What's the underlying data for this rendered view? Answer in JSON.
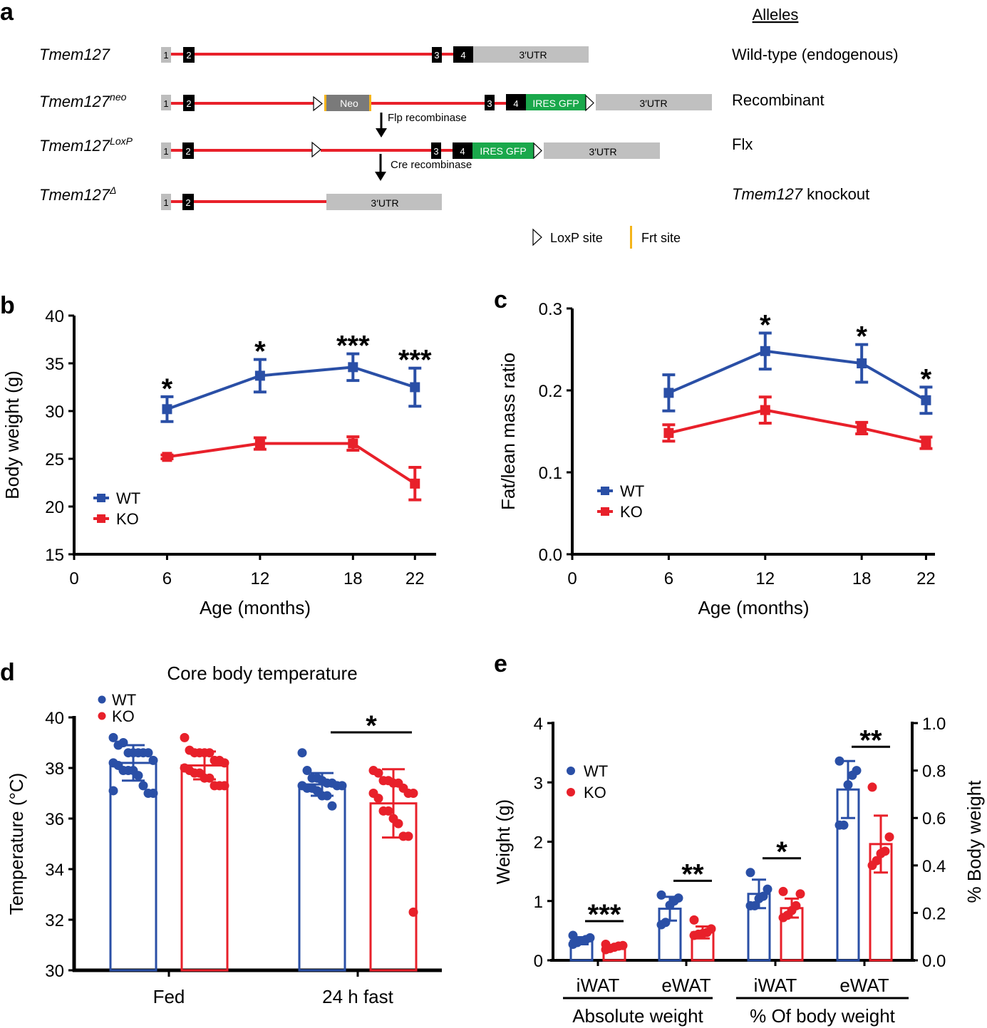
{
  "colors": {
    "wt": "#2a4fa6",
    "ko": "#e8202a",
    "intron": "#e8202a",
    "exon_dark": "#000000",
    "exon_light": "#bdbdbd",
    "utr": "#c0c0c0",
    "neo": "#7a7a7a",
    "gfp": "#1aa84b",
    "frt": "#f4b41a",
    "axis": "#000000"
  },
  "panel_a": {
    "letter": "a",
    "alleles_header": "Alleles",
    "rows": [
      {
        "gene": "Tmem127",
        "sup": "",
        "allele": "Wild-type (endogenous)"
      },
      {
        "gene": "Tmem127",
        "sup": "neo",
        "allele": "Recombinant"
      },
      {
        "gene": "Tmem127",
        "sup": "LoxP",
        "allele": "Flx"
      },
      {
        "gene": "Tmem127",
        "sup": "Δ",
        "allele_italic": "Tmem127",
        "allele": " knockout"
      }
    ],
    "exons": {
      "e1": "1",
      "e2": "2",
      "e3": "3",
      "e4": "4"
    },
    "utr_label": "3′UTR",
    "neo_label": "Neo",
    "gfp_label": "IRES GFP",
    "flp_label": "Flp recombinase",
    "cre_label": "Cre recombinase",
    "legend": {
      "loxp": "LoxP site",
      "frt": "Frt site"
    }
  },
  "chart_data": [
    {
      "id": "b",
      "type": "line",
      "letter": "b",
      "title": "",
      "xlabel": "Age (months)",
      "ylabel": "Body weight (g)",
      "xlim": [
        0,
        23
      ],
      "ylim": [
        15,
        40
      ],
      "xticks": [
        0,
        6,
        12,
        18,
        22
      ],
      "yticks": [
        15,
        20,
        25,
        30,
        35,
        40
      ],
      "grid": false,
      "legend": "left-middle",
      "series": [
        {
          "name": "WT",
          "x": [
            6,
            12,
            18,
            22
          ],
          "y": [
            30.2,
            33.7,
            34.6,
            32.5
          ],
          "err": [
            1.3,
            1.7,
            1.4,
            2.0
          ]
        },
        {
          "name": "KO",
          "x": [
            6,
            12,
            18,
            22
          ],
          "y": [
            25.2,
            26.6,
            26.6,
            22.4
          ],
          "err": [
            0.2,
            0.6,
            0.7,
            1.7
          ]
        }
      ],
      "annotations": [
        {
          "x": 6,
          "text": "*"
        },
        {
          "x": 12,
          "text": "*"
        },
        {
          "x": 18,
          "text": "***"
        },
        {
          "x": 22,
          "text": "***"
        }
      ]
    },
    {
      "id": "c",
      "type": "line",
      "letter": "c",
      "title": "",
      "xlabel": "Age (months)",
      "ylabel": "Fat/lean mass ratio",
      "xlim": [
        0,
        23
      ],
      "ylim": [
        0.0,
        0.3
      ],
      "xticks": [
        0,
        6,
        12,
        18,
        22
      ],
      "yticks": [
        "0.0",
        "0.1",
        "0.2",
        "0.3"
      ],
      "grid": false,
      "legend": "left-middle",
      "series": [
        {
          "name": "WT",
          "x": [
            6,
            12,
            18,
            22
          ],
          "y": [
            0.197,
            0.248,
            0.233,
            0.188
          ],
          "err": [
            0.022,
            0.022,
            0.023,
            0.016
          ]
        },
        {
          "name": "KO",
          "x": [
            6,
            12,
            18,
            22
          ],
          "y": [
            0.148,
            0.176,
            0.154,
            0.136
          ],
          "err": [
            0.01,
            0.016,
            0.007,
            0.007
          ]
        }
      ],
      "annotations": [
        {
          "x": 12,
          "text": "*"
        },
        {
          "x": 18,
          "text": "*"
        },
        {
          "x": 22,
          "text": "*"
        }
      ]
    },
    {
      "id": "d",
      "type": "bar",
      "letter": "d",
      "title": "Core body temperature",
      "xlabel": "",
      "ylabel": "Temperature (°C)",
      "ylim": [
        30,
        40
      ],
      "yticks": [
        30,
        32,
        34,
        36,
        38,
        40
      ],
      "categories": [
        "Fed",
        "24 h fast"
      ],
      "grid": false,
      "legend": "top-left",
      "series": [
        {
          "name": "WT",
          "values": [
            38.2,
            37.35
          ],
          "err": [
            0.7,
            0.45
          ],
          "points": [
            [
              39.2,
              38.9,
              39.0,
              38.6,
              38.6,
              38.6,
              38.6,
              38.6,
              38.3,
              38.2,
              38.1,
              37.9,
              37.9,
              37.9,
              37.7,
              37.3,
              37.0,
              37.0,
              37.1
            ],
            [
              38.6,
              37.9,
              37.6,
              37.6,
              37.5,
              37.4,
              37.4,
              37.3,
              37.3,
              37.3,
              37.2,
              37.2,
              37.1,
              36.9,
              36.9,
              36.5
            ]
          ]
        },
        {
          "name": "KO",
          "values": [
            38.1,
            36.6
          ],
          "err": [
            0.55,
            1.35
          ],
          "points": [
            [
              39.2,
              38.7,
              38.6,
              38.6,
              38.6,
              38.6,
              38.3,
              38.3,
              38.2,
              38.0,
              37.9,
              37.8,
              37.8,
              37.6,
              37.6,
              37.3,
              37.3,
              37.3
            ],
            [
              37.9,
              37.8,
              37.5,
              37.5,
              37.4,
              37.4,
              37.2,
              37.0,
              37.0,
              37.0,
              36.8,
              36.3,
              36.3,
              36.0,
              35.8,
              35.3,
              35.3,
              32.3
            ]
          ]
        }
      ],
      "annotations": [
        {
          "between": "24 h fast",
          "text": "*"
        }
      ]
    },
    {
      "id": "e",
      "type": "bar",
      "letter": "e",
      "title": "",
      "xlabel": "",
      "ylabel": "Weight (g)",
      "ylabel_right": "% Body weight",
      "ylim": [
        0,
        4
      ],
      "ylim_right": [
        0.0,
        1.0
      ],
      "yticks": [
        0,
        1,
        2,
        3,
        4
      ],
      "yticks_right": [
        "0.0",
        "0.2",
        "0.4",
        "0.6",
        "0.8",
        "1.0"
      ],
      "categories": [
        "iWAT",
        "eWAT",
        "iWAT",
        "eWAT"
      ],
      "category_groups": [
        {
          "label": "Absolute weight",
          "axis": "left",
          "members": [
            0,
            1
          ]
        },
        {
          "label": "% Of body weight",
          "axis": "right",
          "members": [
            2,
            3
          ]
        }
      ],
      "grid": false,
      "legend": "top-left",
      "series": [
        {
          "name": "WT",
          "values": [
            0.33,
            0.87,
            0.28,
            0.72
          ],
          "err": [
            0.06,
            0.2,
            0.06,
            0.12
          ],
          "points": [
            [
              0.42,
              0.38,
              0.35,
              0.33,
              0.3,
              0.27
            ],
            [
              1.1,
              1.05,
              1.0,
              0.93,
              0.64,
              0.6
            ],
            [
              0.37,
              0.3,
              0.27,
              0.26,
              0.23,
              0.23
            ],
            [
              0.84,
              0.8,
              0.78,
              0.74,
              0.57,
              0.57
            ]
          ]
        },
        {
          "name": "KO",
          "values": [
            0.22,
            0.47,
            0.22,
            0.49
          ],
          "err": [
            0.03,
            0.1,
            0.04,
            0.12
          ],
          "points": [
            [
              0.27,
              0.25,
              0.24,
              0.22,
              0.2,
              0.18
            ],
            [
              0.68,
              0.53,
              0.47,
              0.45,
              0.44,
              0.42
            ],
            [
              0.29,
              0.28,
              0.23,
              0.21,
              0.19,
              0.18
            ],
            [
              0.73,
              0.52,
              0.46,
              0.45,
              0.42,
              0.4
            ]
          ]
        }
      ],
      "annotations": [
        {
          "category": 0,
          "text": "***"
        },
        {
          "category": 1,
          "text": "**"
        },
        {
          "category": 2,
          "text": "*"
        },
        {
          "category": 3,
          "text": "**"
        }
      ]
    }
  ]
}
